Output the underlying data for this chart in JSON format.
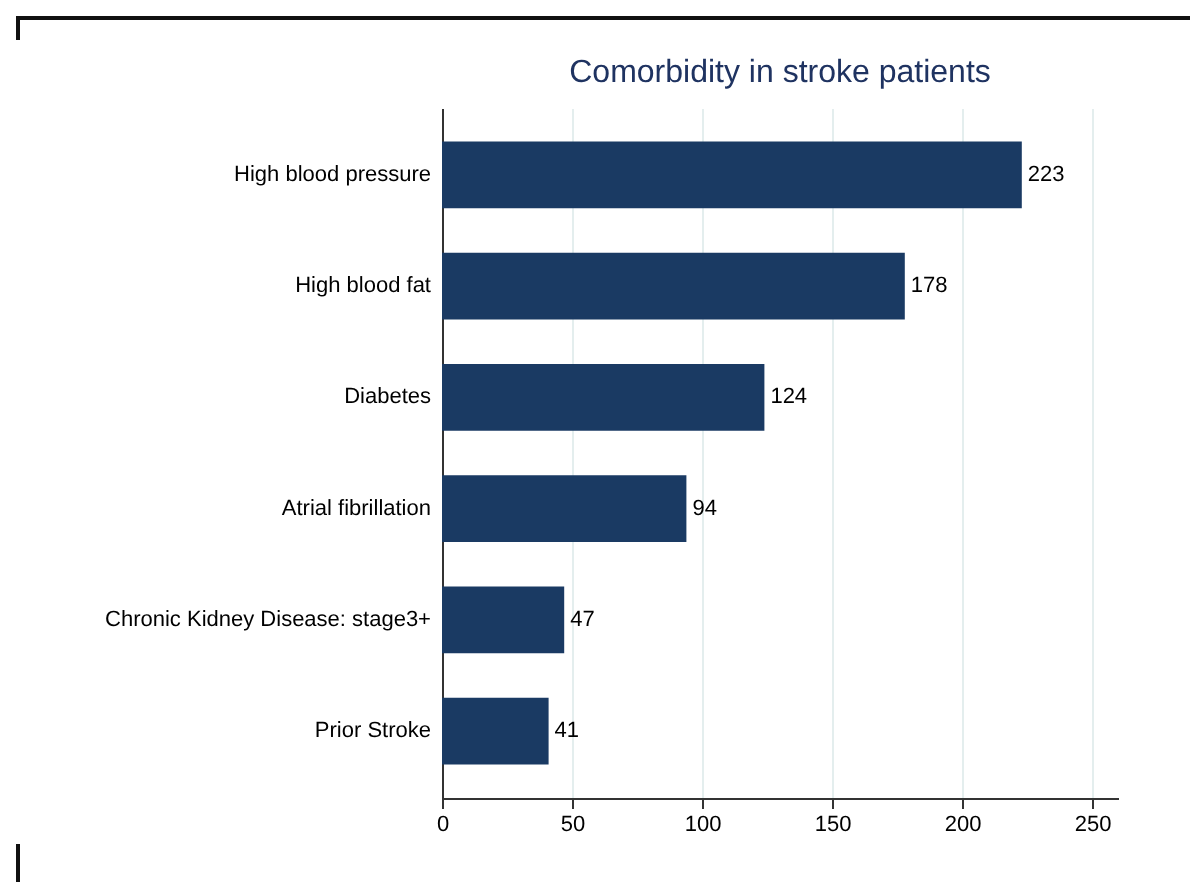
{
  "chart_data": {
    "type": "bar",
    "orientation": "horizontal",
    "title": "Comorbidity in stroke patients",
    "categories": [
      "High blood pressure",
      "High blood fat",
      "Diabetes",
      "Atrial fibrillation",
      "Chronic Kidney Disease: stage3+",
      "Prior Stroke"
    ],
    "values": [
      223,
      178,
      124,
      94,
      47,
      41
    ],
    "color": "#1a3a63",
    "data_labels": true,
    "xlim": [
      0,
      260
    ],
    "xticks": [
      0,
      50,
      100,
      150,
      200,
      250
    ],
    "grid": "x"
  }
}
